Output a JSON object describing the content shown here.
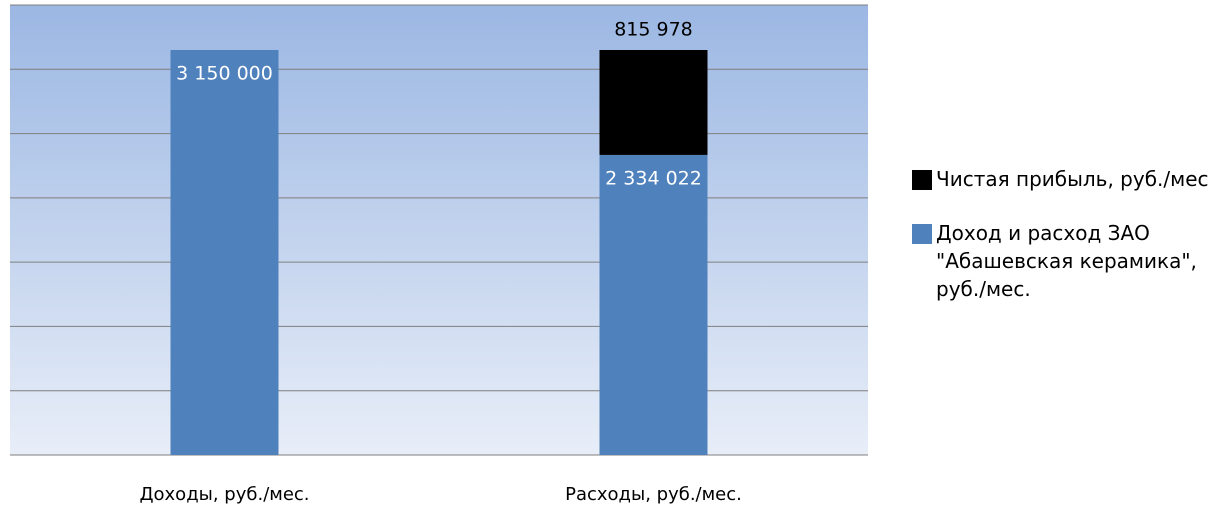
{
  "chart_data": {
    "type": "stacked_bar",
    "categories": [
      "Доходы, руб./мес.",
      "Расходы, руб./мес."
    ],
    "series": [
      {
        "name": "Доход и расход ЗАО \"Абашевская керамика\", руб./мес.",
        "color": "#4f81bd",
        "values": [
          3150000,
          2334022
        ],
        "value_labels": [
          "3 150 000",
          "2 334 022"
        ]
      },
      {
        "name": "Чистая прибыль, руб./мес",
        "color": "#000000",
        "values": [
          null,
          815978
        ],
        "value_labels": [
          null,
          "815 978"
        ]
      }
    ],
    "ylim": [
      0,
      3500000
    ],
    "yticks": [
      0,
      500000,
      1000000,
      1500000,
      2000000,
      2500000,
      3000000,
      3500000
    ],
    "grid": true
  }
}
